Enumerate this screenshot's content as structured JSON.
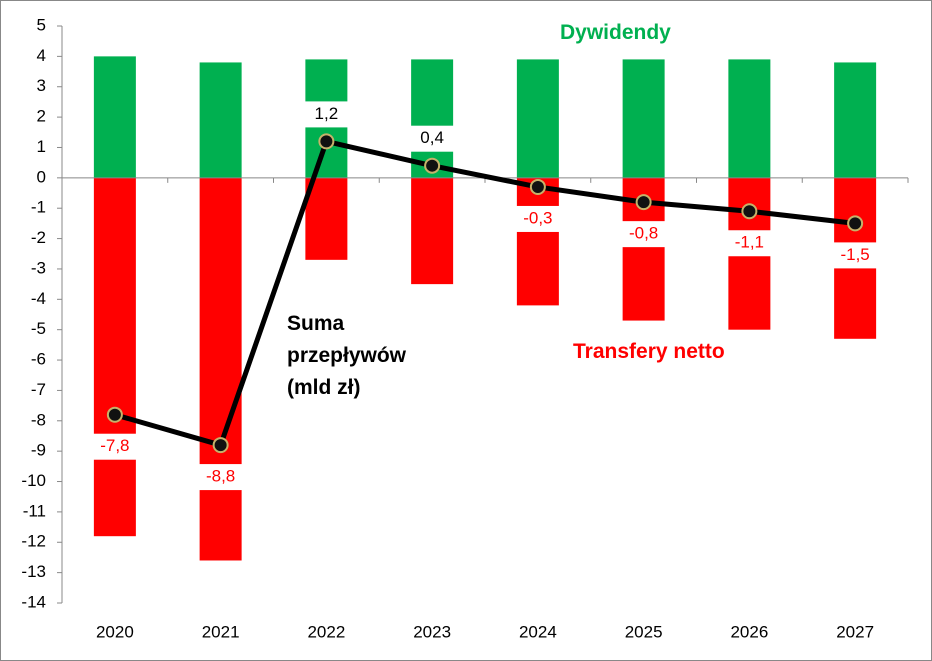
{
  "chart_data": {
    "type": "bar_line",
    "categories": [
      "2020",
      "2021",
      "2022",
      "2023",
      "2024",
      "2025",
      "2026",
      "2027"
    ],
    "series": [
      {
        "name": "Dywidendy",
        "color": "#00b050",
        "type": "bar",
        "values": [
          4.0,
          3.8,
          3.9,
          3.9,
          3.9,
          3.9,
          3.9,
          3.8
        ]
      },
      {
        "name": "Transfery netto",
        "color": "#ff0000",
        "type": "bar",
        "values": [
          -11.8,
          -12.6,
          -2.7,
          -3.5,
          -4.2,
          -4.7,
          -5.0,
          -5.3
        ]
      },
      {
        "name": "Suma przepływów (mld zł)",
        "color": "#000000",
        "type": "line",
        "values": [
          -7.8,
          -8.8,
          1.2,
          0.4,
          -0.3,
          -0.8,
          -1.1,
          -1.5
        ],
        "value_labels": [
          "-7,8",
          "-8,8",
          "1,2",
          "0,4",
          "-0,3",
          "-0,8",
          "-1,1",
          "-1,5"
        ]
      }
    ],
    "ylim": [
      -14,
      5
    ],
    "yticks": [
      -14,
      -13,
      -12,
      -11,
      -10,
      -9,
      -8,
      -7,
      -6,
      -5,
      -4,
      -3,
      -2,
      -1,
      0,
      1,
      2,
      3,
      4,
      5
    ],
    "grid": false
  }
}
